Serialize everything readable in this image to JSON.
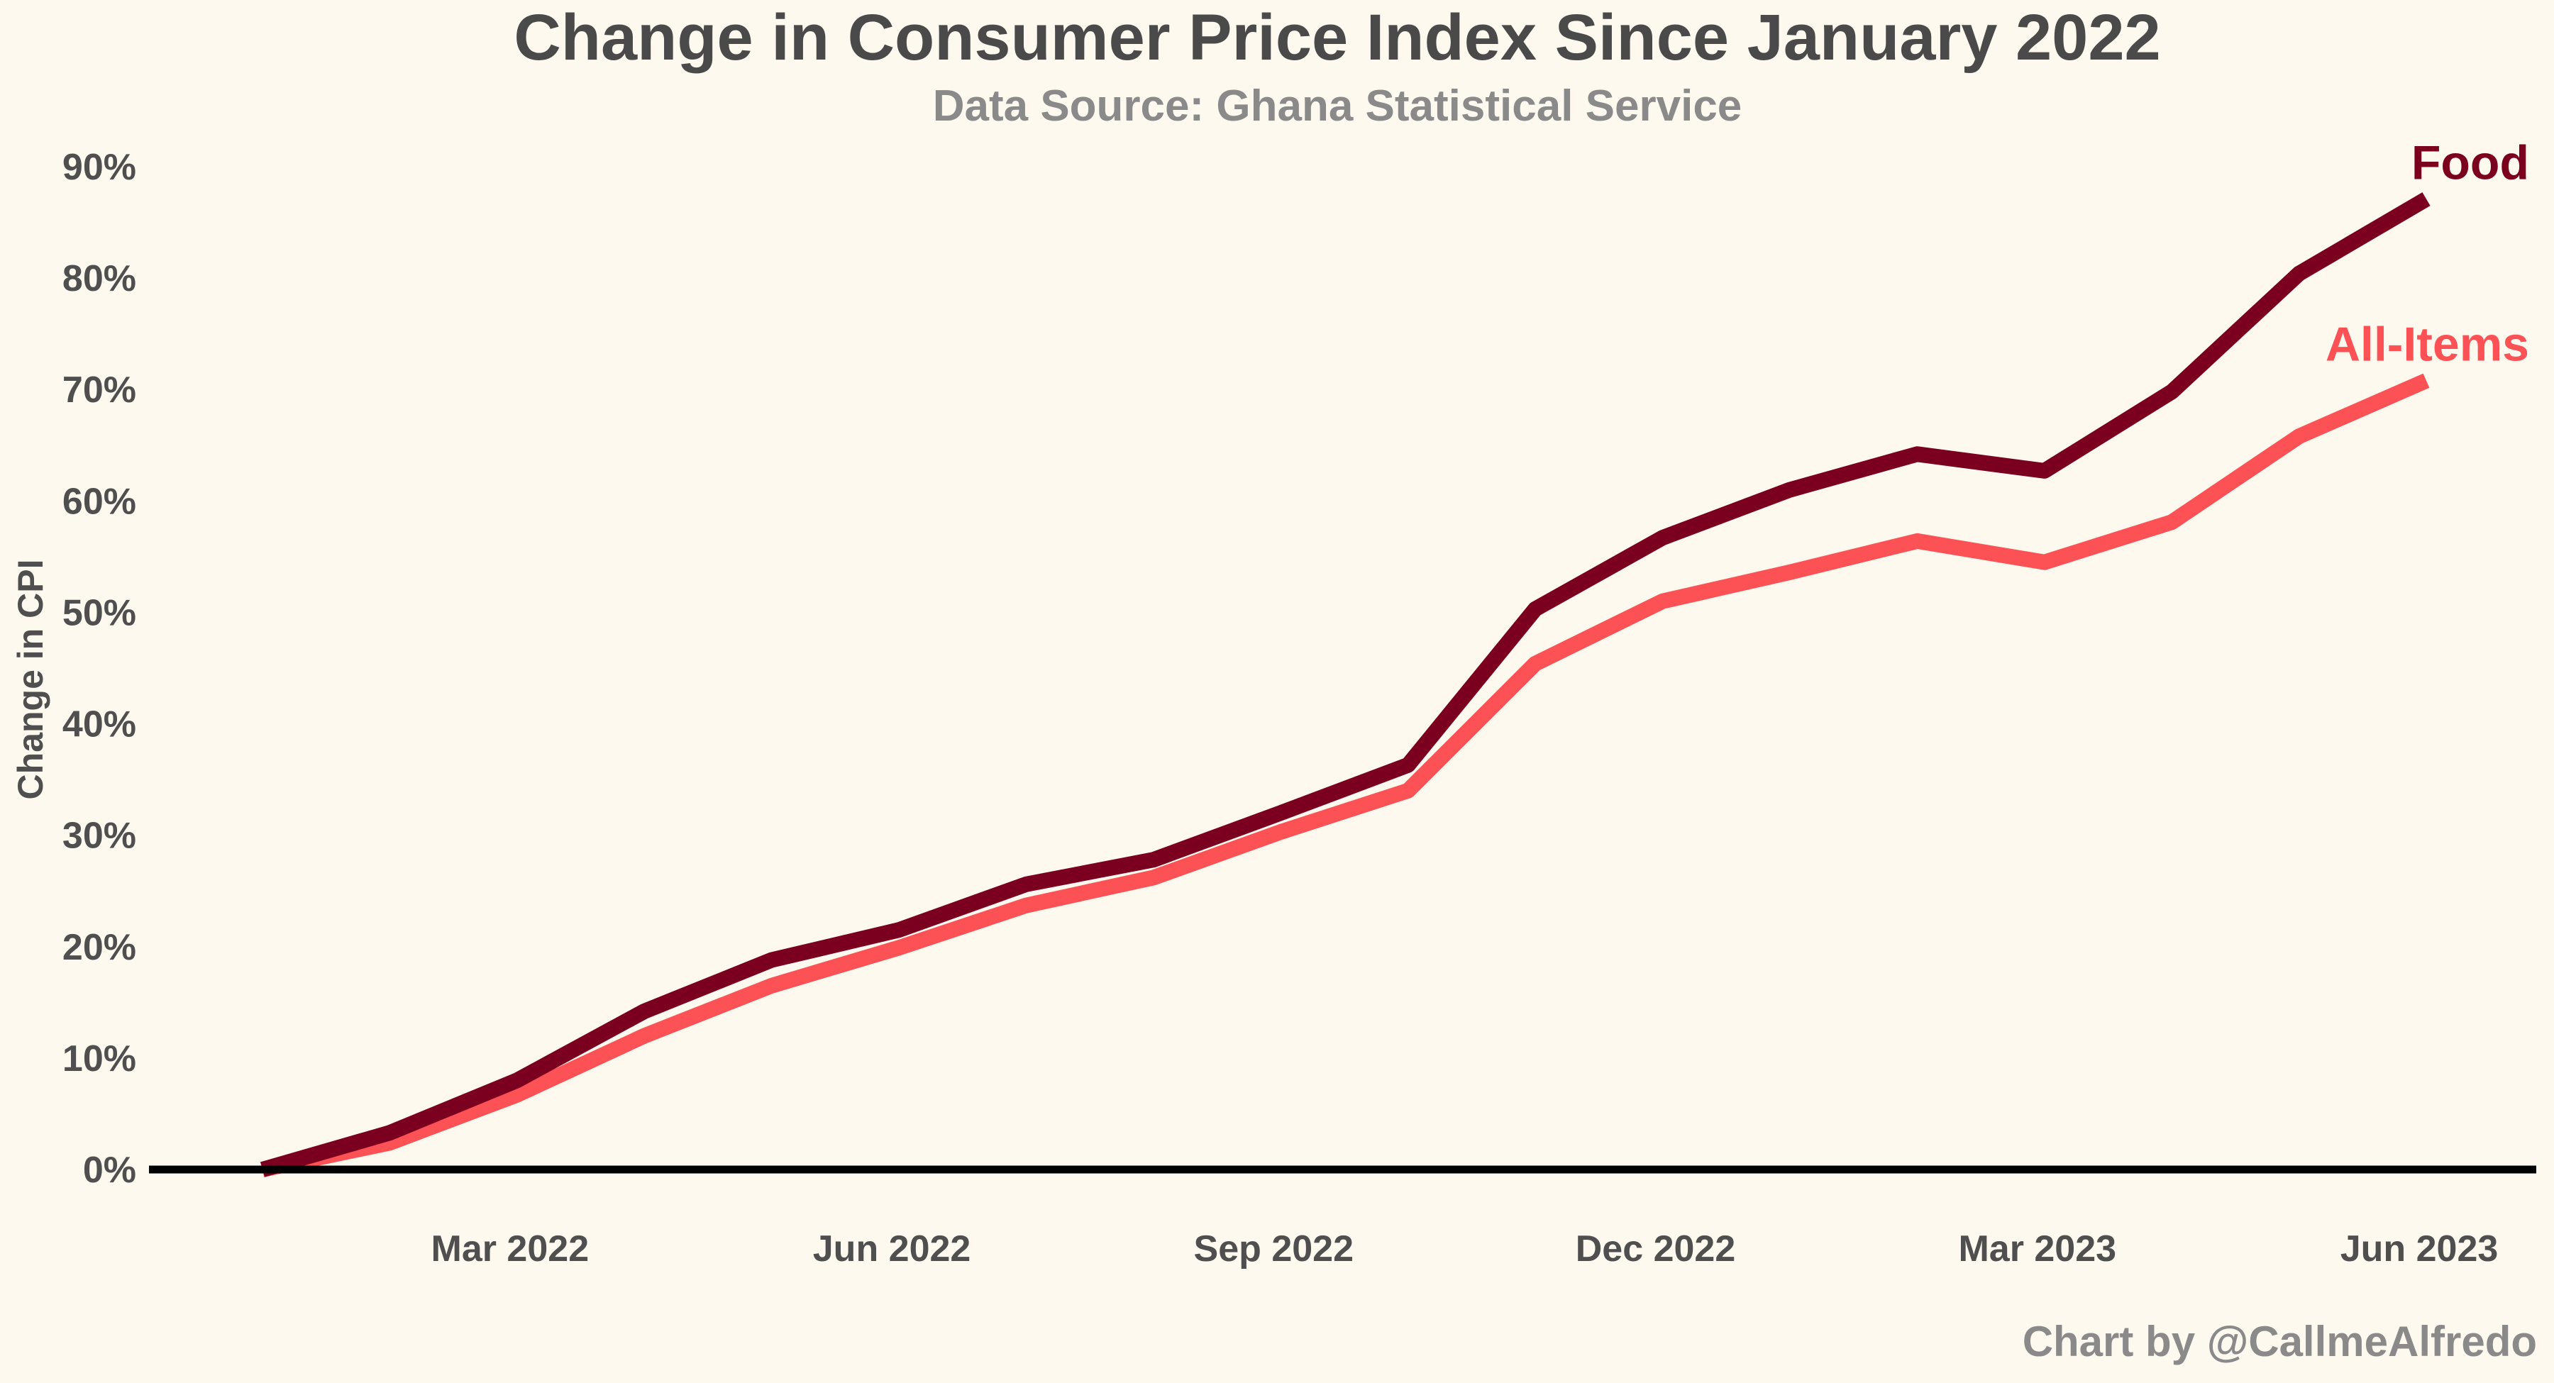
{
  "chart_data": {
    "type": "line",
    "title": "Change in Consumer Price Index Since January 2022",
    "subtitle": "Data Source: Ghana Statistical Service",
    "ylabel": "Change in CPI",
    "xlabel": "",
    "credit": "Chart by @CallmeAlfredo",
    "x": [
      "2022-01",
      "2022-02",
      "2022-03",
      "2022-04",
      "2022-05",
      "2022-06",
      "2022-07",
      "2022-08",
      "2022-09",
      "2022-10",
      "2022-11",
      "2022-12",
      "2023-01",
      "2023-02",
      "2023-03",
      "2023-04",
      "2023-05",
      "2023-06"
    ],
    "x_ticks": [
      {
        "x": "2022-03",
        "label": "Mar 2022"
      },
      {
        "x": "2022-06",
        "label": "Jun 2022"
      },
      {
        "x": "2022-09",
        "label": "Sep 2022"
      },
      {
        "x": "2022-12",
        "label": "Dec 2022"
      },
      {
        "x": "2023-03",
        "label": "Mar 2023"
      },
      {
        "x": "2023-06",
        "label": "Jun 2023"
      }
    ],
    "y_ticks": [
      {
        "value": 0,
        "label": "0%"
      },
      {
        "value": 10,
        "label": "10%"
      },
      {
        "value": 20,
        "label": "20%"
      },
      {
        "value": 30,
        "label": "30%"
      },
      {
        "value": 40,
        "label": "40%"
      },
      {
        "value": 50,
        "label": "50%"
      },
      {
        "value": 60,
        "label": "60%"
      },
      {
        "value": 70,
        "label": "70%"
      },
      {
        "value": 80,
        "label": "80%"
      },
      {
        "value": 90,
        "label": "90%"
      }
    ],
    "ylim": [
      0,
      90
    ],
    "grid": false,
    "legend": "direct labels at line ends",
    "series": [
      {
        "name": "Food",
        "color": "#7b0020",
        "values": [
          0,
          3.3,
          8.0,
          14.2,
          18.8,
          21.5,
          25.6,
          27.8,
          32.0,
          36.3,
          50.3,
          56.7,
          61.0,
          64.2,
          62.7,
          69.8,
          80.4,
          87.1
        ]
      },
      {
        "name": "All-Items",
        "color": "#fd5255",
        "values": [
          0,
          2.4,
          6.7,
          12.0,
          16.5,
          19.9,
          23.7,
          26.2,
          30.3,
          34.0,
          45.4,
          51.0,
          53.6,
          56.4,
          54.5,
          58.1,
          65.8,
          70.8
        ]
      }
    ]
  }
}
